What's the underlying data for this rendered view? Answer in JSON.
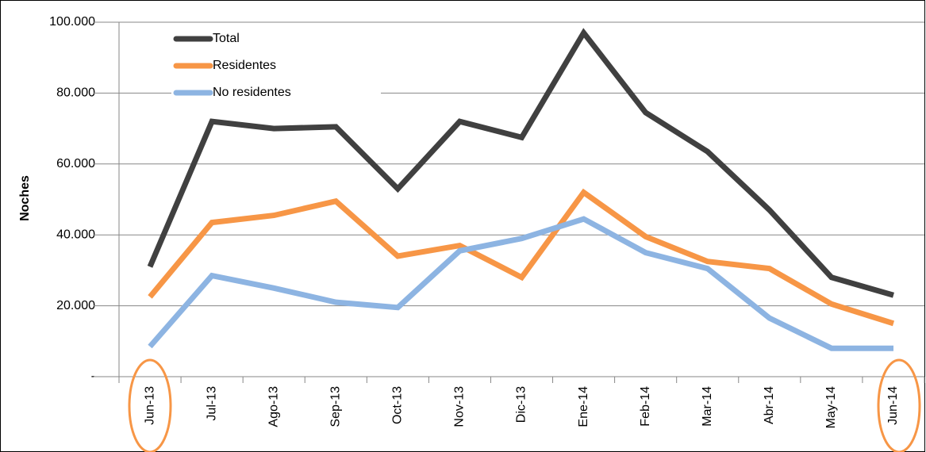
{
  "chart_data": {
    "type": "line",
    "y_label": "Noches",
    "categories": [
      "Jun-13",
      "Jul-13",
      "Ago-13",
      "Sep-13",
      "Oct-13",
      "Nov-13",
      "Dic-13",
      "Ene-14",
      "Feb-14",
      "Mar-14",
      "Abr-14",
      "May-14",
      "Jun-14"
    ],
    "series": [
      {
        "name": "Total",
        "color": "#404040",
        "values": [
          31000,
          72000,
          70000,
          70500,
          53000,
          72000,
          67500,
          97000,
          74500,
          63500,
          47000,
          28000,
          23000
        ]
      },
      {
        "name": "Residentes",
        "color": "#f79646",
        "values": [
          22500,
          43500,
          45500,
          49500,
          34000,
          37000,
          28000,
          52000,
          39500,
          32500,
          30500,
          20500,
          15000
        ]
      },
      {
        "name": "No residentes",
        "color": "#8db4e2",
        "values": [
          8500,
          28500,
          25000,
          21000,
          19500,
          35500,
          39000,
          44500,
          35000,
          30500,
          16500,
          8000,
          8000
        ]
      }
    ],
    "ylim": [
      0,
      100000
    ],
    "yticks": [
      {
        "value": 0,
        "label": "-"
      },
      {
        "value": 20000,
        "label": "20.000"
      },
      {
        "value": 40000,
        "label": "40.000"
      },
      {
        "value": 60000,
        "label": "60.000"
      },
      {
        "value": 80000,
        "label": "80.000"
      },
      {
        "value": 100000,
        "label": "100.000"
      }
    ],
    "grid": true,
    "legend": "upper-left"
  }
}
